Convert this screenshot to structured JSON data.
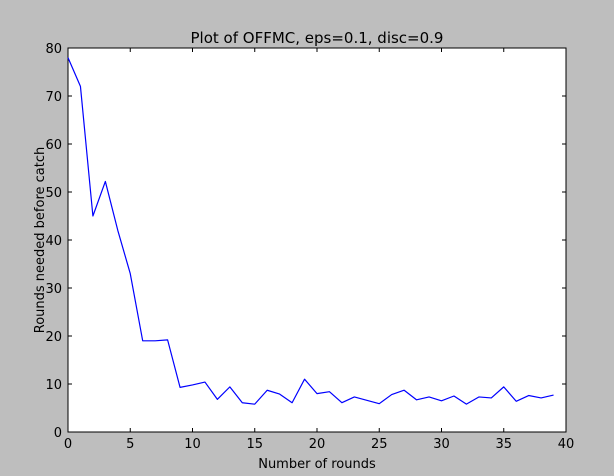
{
  "chart_data": {
    "type": "line",
    "title": "Plot of OFFMC, eps=0.1, disc=0.9",
    "xlabel": "Number of rounds",
    "ylabel": "Rounds needed before catch",
    "xlim": [
      0,
      40
    ],
    "ylim": [
      0,
      80
    ],
    "xticks": [
      0,
      5,
      10,
      15,
      20,
      25,
      30,
      35,
      40
    ],
    "yticks": [
      0,
      10,
      20,
      30,
      40,
      50,
      60,
      70,
      80
    ],
    "grid": false,
    "line_color": "#0000ff",
    "background_color": "#bebebe",
    "plot_area_color": "#ffffff",
    "series": [
      {
        "x": [
          0,
          1,
          2,
          3,
          4,
          5,
          6,
          7,
          8,
          9,
          10,
          11,
          12,
          13,
          14,
          15,
          16,
          17,
          18,
          19,
          20,
          21,
          22,
          23,
          24,
          25,
          26,
          27,
          28,
          29,
          30,
          31,
          32,
          33,
          34,
          35,
          36,
          37,
          38,
          39
        ],
        "values": [
          78,
          72,
          45,
          52.2,
          42,
          33,
          19,
          19,
          19.2,
          9.3,
          9.8,
          10.4,
          6.8,
          9.4,
          6.1,
          5.8,
          8.7,
          7.9,
          6.1,
          11,
          8,
          8.4,
          6.1,
          7.3,
          6.6,
          5.9,
          7.8,
          8.7,
          6.7,
          7.3,
          6.5,
          7.5,
          5.8,
          7.3,
          7.1,
          9.4,
          6.4,
          7.6,
          7.1,
          7.7
        ]
      }
    ]
  }
}
